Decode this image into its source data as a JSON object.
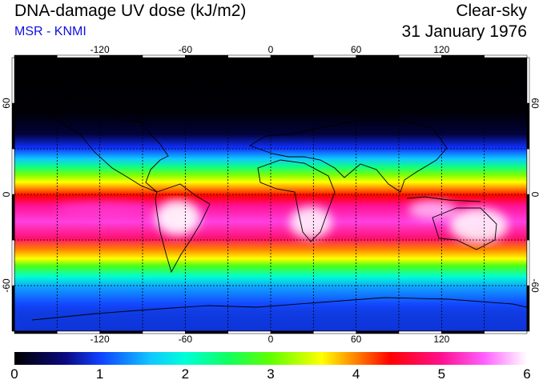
{
  "header": {
    "title": "DNA-damage UV dose (kJ/m2)",
    "source": "MSR - KNMI",
    "sky_condition": "Clear-sky",
    "date": "31 January 1976"
  },
  "map": {
    "projection": "equirectangular",
    "lon_range": [
      -180,
      180
    ],
    "lat_range": [
      -90,
      90
    ],
    "gridline_lons": [
      -150,
      -120,
      -90,
      -60,
      -30,
      0,
      30,
      60,
      90,
      120,
      150
    ],
    "gridline_lats": [
      -60,
      -30,
      0,
      30,
      60
    ],
    "lon_tick_labels": [
      "-120",
      "-60",
      "0",
      "60",
      "120"
    ],
    "lon_tick_values": [
      -120,
      -60,
      0,
      60,
      120
    ],
    "lat_tick_labels": [
      "60",
      "0",
      "-60"
    ],
    "lat_tick_values": [
      60,
      0,
      -60
    ]
  },
  "colorbar": {
    "min": 0,
    "max": 6,
    "labels": [
      "0",
      "1",
      "2",
      "3",
      "4",
      "5",
      "6"
    ],
    "stops": [
      {
        "value": 0,
        "color": "#000000"
      },
      {
        "value": 0.6,
        "color": "#0a0a80"
      },
      {
        "value": 1.0,
        "color": "#1040ff"
      },
      {
        "value": 1.6,
        "color": "#10c8ff"
      },
      {
        "value": 2.0,
        "color": "#00ffd8"
      },
      {
        "value": 2.5,
        "color": "#10ff60"
      },
      {
        "value": 3.0,
        "color": "#60ff00"
      },
      {
        "value": 3.6,
        "color": "#ffff00"
      },
      {
        "value": 4.0,
        "color": "#ff8000"
      },
      {
        "value": 4.4,
        "color": "#ff0000"
      },
      {
        "value": 5.0,
        "color": "#ff1090"
      },
      {
        "value": 5.5,
        "color": "#ff60ff"
      },
      {
        "value": 6.0,
        "color": "#ffffff"
      }
    ]
  }
}
